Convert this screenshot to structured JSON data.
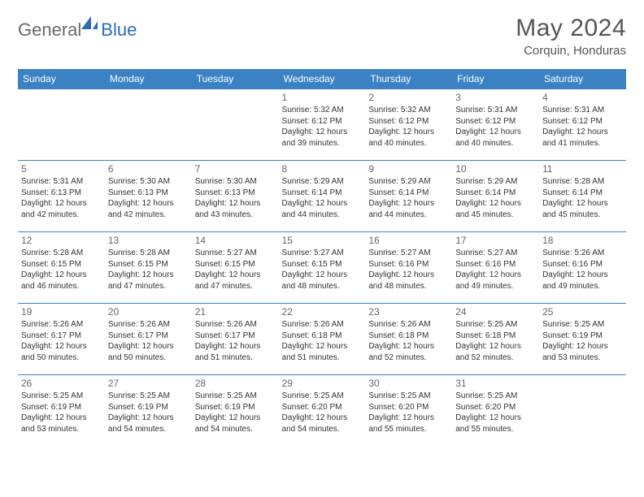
{
  "brand": {
    "general": "General",
    "blue": "Blue",
    "general_color": "#6a6a6a",
    "blue_color": "#2a6db8",
    "icon_color": "#2a6db8"
  },
  "header": {
    "title": "May 2024",
    "location": "Corquin, Honduras",
    "title_color": "#555555",
    "title_fontsize": 30,
    "location_fontsize": 15
  },
  "calendar": {
    "header_bg": "#3b82c4",
    "header_text_color": "#ffffff",
    "cell_border_color": "#3b82c4",
    "daynum_color": "#666666",
    "body_text_color": "#333333",
    "body_fontsize": 10,
    "day_headers": [
      "Sunday",
      "Monday",
      "Tuesday",
      "Wednesday",
      "Thursday",
      "Friday",
      "Saturday"
    ]
  },
  "days": {
    "d1": {
      "num": "1",
      "sunrise": "Sunrise: 5:32 AM",
      "sunset": "Sunset: 6:12 PM",
      "day1": "Daylight: 12 hours",
      "day2": "and 39 minutes."
    },
    "d2": {
      "num": "2",
      "sunrise": "Sunrise: 5:32 AM",
      "sunset": "Sunset: 6:12 PM",
      "day1": "Daylight: 12 hours",
      "day2": "and 40 minutes."
    },
    "d3": {
      "num": "3",
      "sunrise": "Sunrise: 5:31 AM",
      "sunset": "Sunset: 6:12 PM",
      "day1": "Daylight: 12 hours",
      "day2": "and 40 minutes."
    },
    "d4": {
      "num": "4",
      "sunrise": "Sunrise: 5:31 AM",
      "sunset": "Sunset: 6:12 PM",
      "day1": "Daylight: 12 hours",
      "day2": "and 41 minutes."
    },
    "d5": {
      "num": "5",
      "sunrise": "Sunrise: 5:31 AM",
      "sunset": "Sunset: 6:13 PM",
      "day1": "Daylight: 12 hours",
      "day2": "and 42 minutes."
    },
    "d6": {
      "num": "6",
      "sunrise": "Sunrise: 5:30 AM",
      "sunset": "Sunset: 6:13 PM",
      "day1": "Daylight: 12 hours",
      "day2": "and 42 minutes."
    },
    "d7": {
      "num": "7",
      "sunrise": "Sunrise: 5:30 AM",
      "sunset": "Sunset: 6:13 PM",
      "day1": "Daylight: 12 hours",
      "day2": "and 43 minutes."
    },
    "d8": {
      "num": "8",
      "sunrise": "Sunrise: 5:29 AM",
      "sunset": "Sunset: 6:14 PM",
      "day1": "Daylight: 12 hours",
      "day2": "and 44 minutes."
    },
    "d9": {
      "num": "9",
      "sunrise": "Sunrise: 5:29 AM",
      "sunset": "Sunset: 6:14 PM",
      "day1": "Daylight: 12 hours",
      "day2": "and 44 minutes."
    },
    "d10": {
      "num": "10",
      "sunrise": "Sunrise: 5:29 AM",
      "sunset": "Sunset: 6:14 PM",
      "day1": "Daylight: 12 hours",
      "day2": "and 45 minutes."
    },
    "d11": {
      "num": "11",
      "sunrise": "Sunrise: 5:28 AM",
      "sunset": "Sunset: 6:14 PM",
      "day1": "Daylight: 12 hours",
      "day2": "and 45 minutes."
    },
    "d12": {
      "num": "12",
      "sunrise": "Sunrise: 5:28 AM",
      "sunset": "Sunset: 6:15 PM",
      "day1": "Daylight: 12 hours",
      "day2": "and 46 minutes."
    },
    "d13": {
      "num": "13",
      "sunrise": "Sunrise: 5:28 AM",
      "sunset": "Sunset: 6:15 PM",
      "day1": "Daylight: 12 hours",
      "day2": "and 47 minutes."
    },
    "d14": {
      "num": "14",
      "sunrise": "Sunrise: 5:27 AM",
      "sunset": "Sunset: 6:15 PM",
      "day1": "Daylight: 12 hours",
      "day2": "and 47 minutes."
    },
    "d15": {
      "num": "15",
      "sunrise": "Sunrise: 5:27 AM",
      "sunset": "Sunset: 6:15 PM",
      "day1": "Daylight: 12 hours",
      "day2": "and 48 minutes."
    },
    "d16": {
      "num": "16",
      "sunrise": "Sunrise: 5:27 AM",
      "sunset": "Sunset: 6:16 PM",
      "day1": "Daylight: 12 hours",
      "day2": "and 48 minutes."
    },
    "d17": {
      "num": "17",
      "sunrise": "Sunrise: 5:27 AM",
      "sunset": "Sunset: 6:16 PM",
      "day1": "Daylight: 12 hours",
      "day2": "and 49 minutes."
    },
    "d18": {
      "num": "18",
      "sunrise": "Sunrise: 5:26 AM",
      "sunset": "Sunset: 6:16 PM",
      "day1": "Daylight: 12 hours",
      "day2": "and 49 minutes."
    },
    "d19": {
      "num": "19",
      "sunrise": "Sunrise: 5:26 AM",
      "sunset": "Sunset: 6:17 PM",
      "day1": "Daylight: 12 hours",
      "day2": "and 50 minutes."
    },
    "d20": {
      "num": "20",
      "sunrise": "Sunrise: 5:26 AM",
      "sunset": "Sunset: 6:17 PM",
      "day1": "Daylight: 12 hours",
      "day2": "and 50 minutes."
    },
    "d21": {
      "num": "21",
      "sunrise": "Sunrise: 5:26 AM",
      "sunset": "Sunset: 6:17 PM",
      "day1": "Daylight: 12 hours",
      "day2": "and 51 minutes."
    },
    "d22": {
      "num": "22",
      "sunrise": "Sunrise: 5:26 AM",
      "sunset": "Sunset: 6:18 PM",
      "day1": "Daylight: 12 hours",
      "day2": "and 51 minutes."
    },
    "d23": {
      "num": "23",
      "sunrise": "Sunrise: 5:26 AM",
      "sunset": "Sunset: 6:18 PM",
      "day1": "Daylight: 12 hours",
      "day2": "and 52 minutes."
    },
    "d24": {
      "num": "24",
      "sunrise": "Sunrise: 5:25 AM",
      "sunset": "Sunset: 6:18 PM",
      "day1": "Daylight: 12 hours",
      "day2": "and 52 minutes."
    },
    "d25": {
      "num": "25",
      "sunrise": "Sunrise: 5:25 AM",
      "sunset": "Sunset: 6:19 PM",
      "day1": "Daylight: 12 hours",
      "day2": "and 53 minutes."
    },
    "d26": {
      "num": "26",
      "sunrise": "Sunrise: 5:25 AM",
      "sunset": "Sunset: 6:19 PM",
      "day1": "Daylight: 12 hours",
      "day2": "and 53 minutes."
    },
    "d27": {
      "num": "27",
      "sunrise": "Sunrise: 5:25 AM",
      "sunset": "Sunset: 6:19 PM",
      "day1": "Daylight: 12 hours",
      "day2": "and 54 minutes."
    },
    "d28": {
      "num": "28",
      "sunrise": "Sunrise: 5:25 AM",
      "sunset": "Sunset: 6:19 PM",
      "day1": "Daylight: 12 hours",
      "day2": "and 54 minutes."
    },
    "d29": {
      "num": "29",
      "sunrise": "Sunrise: 5:25 AM",
      "sunset": "Sunset: 6:20 PM",
      "day1": "Daylight: 12 hours",
      "day2": "and 54 minutes."
    },
    "d30": {
      "num": "30",
      "sunrise": "Sunrise: 5:25 AM",
      "sunset": "Sunset: 6:20 PM",
      "day1": "Daylight: 12 hours",
      "day2": "and 55 minutes."
    },
    "d31": {
      "num": "31",
      "sunrise": "Sunrise: 5:25 AM",
      "sunset": "Sunset: 6:20 PM",
      "day1": "Daylight: 12 hours",
      "day2": "and 55 minutes."
    }
  }
}
